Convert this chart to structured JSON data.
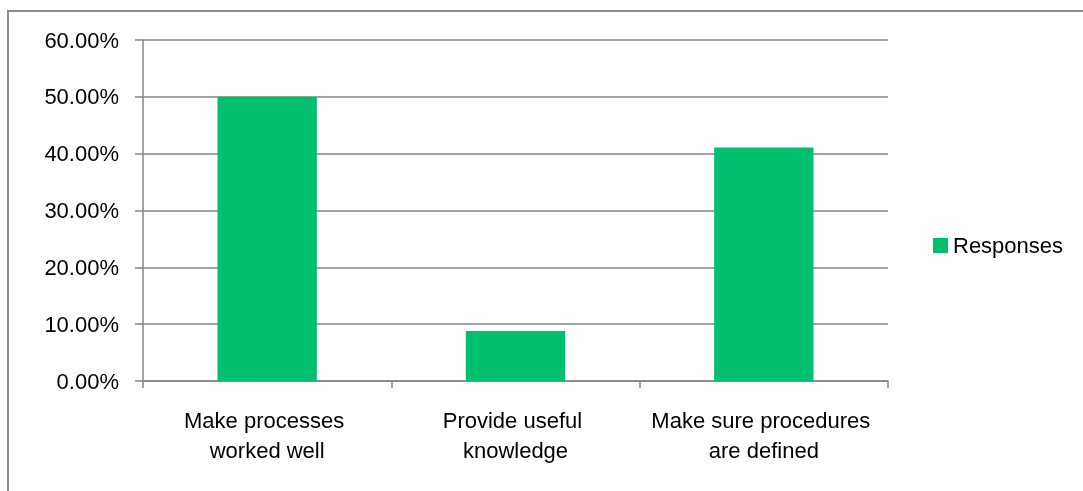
{
  "chart_data": {
    "type": "bar",
    "categories": [
      "Make processes worked well",
      "Provide useful knowledge",
      "Make sure procedures are defined"
    ],
    "series": [
      {
        "name": "Responses",
        "color": "#00bf6f",
        "values": [
          50,
          8.8,
          41.1
        ]
      }
    ],
    "ylim": [
      0,
      60
    ],
    "yticks": [
      {
        "value": 0,
        "label": "0.00%"
      },
      {
        "value": 10,
        "label": "10.00%"
      },
      {
        "value": 20,
        "label": "20.00%"
      },
      {
        "value": 30,
        "label": "30.00%"
      },
      {
        "value": 40,
        "label": "40.00%"
      },
      {
        "value": 50,
        "label": "50.00%"
      },
      {
        "value": 60,
        "label": "60.00%"
      }
    ],
    "grid": "y",
    "legend": "right"
  }
}
